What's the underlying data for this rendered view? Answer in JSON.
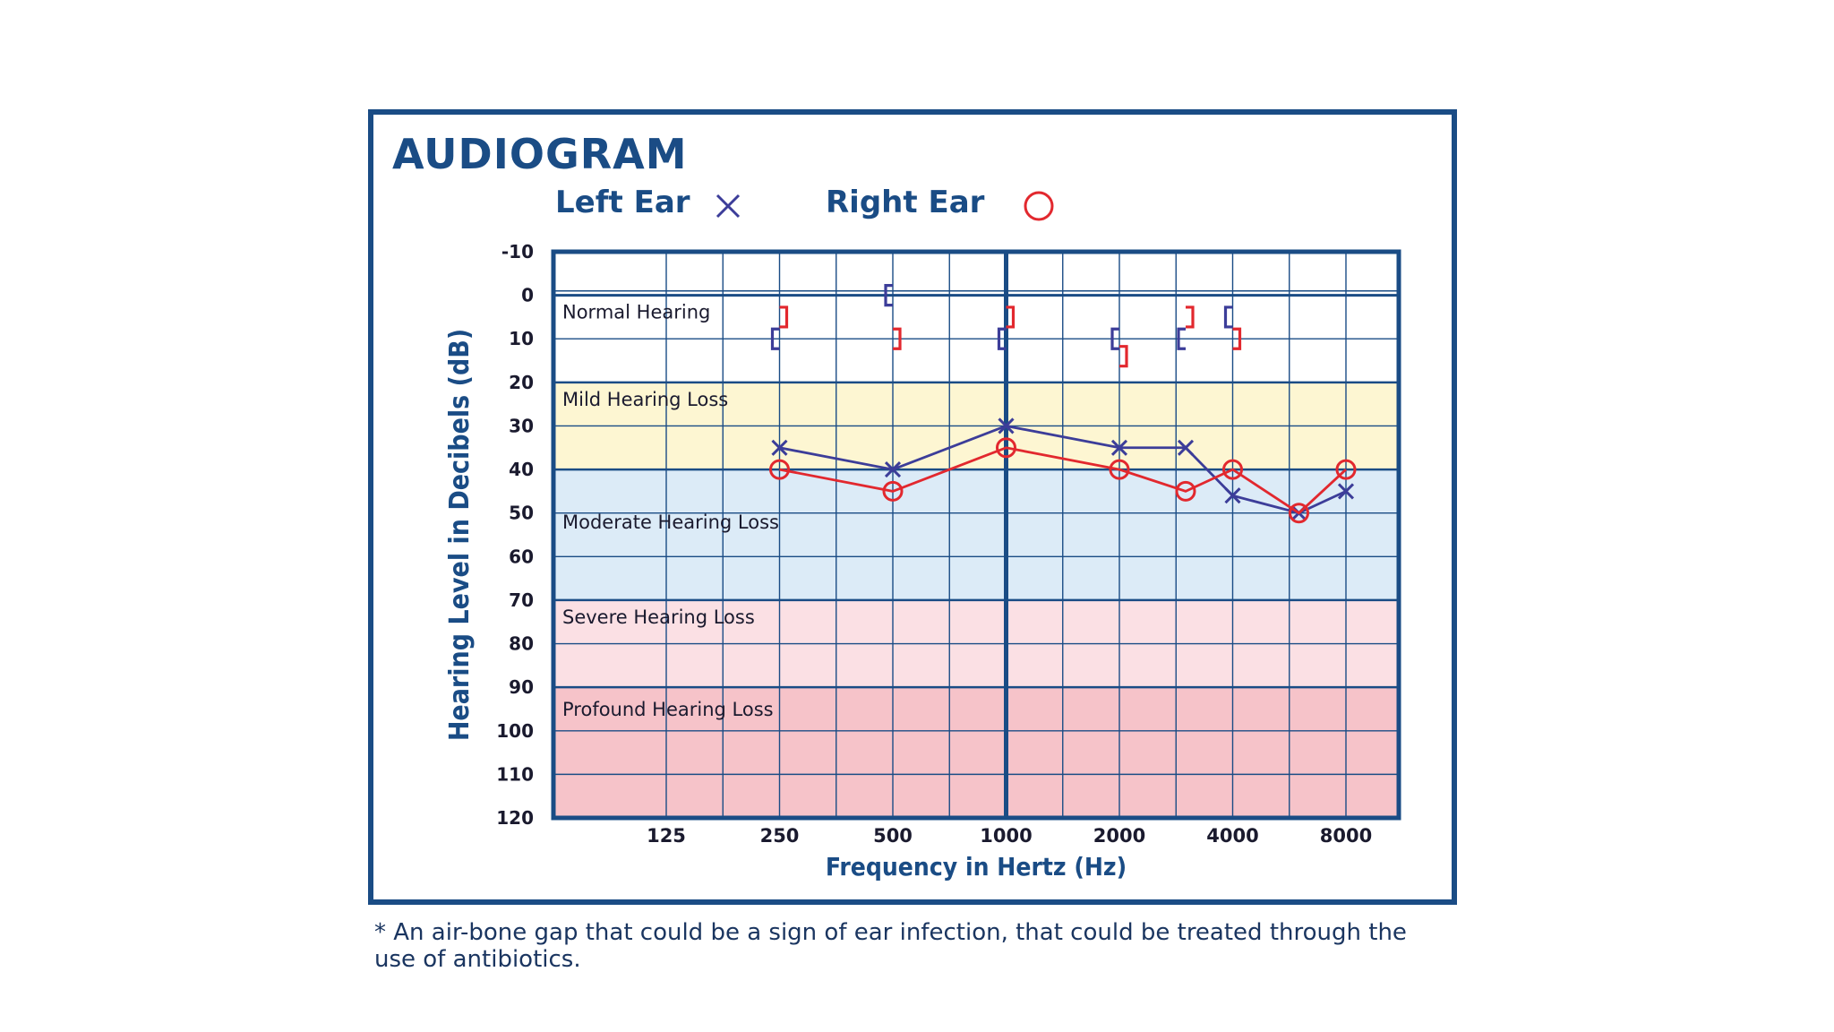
{
  "chart_data": {
    "type": "line",
    "title": "AUDIOGRAM",
    "xlabel": "Frequency in Hertz (Hz)",
    "ylabel": "Hearing Level in Decibels (dB)",
    "x_scale": "log",
    "y_inverted": true,
    "ylim": [
      -10,
      120
    ],
    "x_ticks": [
      "125",
      "250",
      "500",
      "1000",
      "2000",
      "4000",
      "8000"
    ],
    "y_ticks": [
      "-10",
      "0",
      "10",
      "20",
      "30",
      "40",
      "50",
      "60",
      "70",
      "80",
      "90",
      "100",
      "110",
      "120"
    ],
    "zones": [
      {
        "label": "Normal Hearing",
        "from": 0,
        "to": 20,
        "color": "#ffffff"
      },
      {
        "label": "Mild Hearing Loss",
        "from": 20,
        "to": 40,
        "color": "#fdf6d2"
      },
      {
        "label": "Moderate Hearing Loss",
        "from": 40,
        "to": 70,
        "color": "#dcebf7"
      },
      {
        "label": "Severe Hearing Loss",
        "from": 70,
        "to": 90,
        "color": "#fbe0e4"
      },
      {
        "label": "Profound Hearing Loss",
        "from": 90,
        "to": 120,
        "color": "#f6c3c9"
      }
    ],
    "series": [
      {
        "name": "Left Ear",
        "marker": "x",
        "color": "#3c3d99",
        "x": [
          250,
          500,
          1000,
          2000,
          3000,
          4000,
          6000,
          8000
        ],
        "y": [
          35,
          40,
          30,
          35,
          35,
          46,
          50,
          45
        ]
      },
      {
        "name": "Right Ear",
        "marker": "o",
        "color": "#e2282e",
        "x": [
          250,
          500,
          1000,
          2000,
          3000,
          4000,
          6000,
          8000
        ],
        "y": [
          40,
          45,
          35,
          40,
          45,
          40,
          50,
          40
        ]
      }
    ],
    "bone_conduction": {
      "left": {
        "marker": "[",
        "color": "#3c3d99",
        "x": [
          250,
          500,
          1000,
          2000,
          3000,
          4000
        ],
        "y": [
          10,
          0,
          10,
          10,
          10,
          5
        ]
      },
      "right": {
        "marker": "]",
        "color": "#e2282e",
        "x": [
          250,
          500,
          1000,
          2000,
          3000,
          4000
        ],
        "y": [
          5,
          10,
          5,
          14,
          5,
          10
        ]
      }
    }
  },
  "legend": {
    "left_ear": "Left Ear",
    "right_ear": "Right Ear"
  },
  "footnote": "* An air-bone gap that could be a sign of ear infection, that could be treated through the use of antibiotics.",
  "colors": {
    "frame": "#1a4c85",
    "grid": "#1a4c85",
    "left": "#3c3d99",
    "right": "#e2282e"
  }
}
